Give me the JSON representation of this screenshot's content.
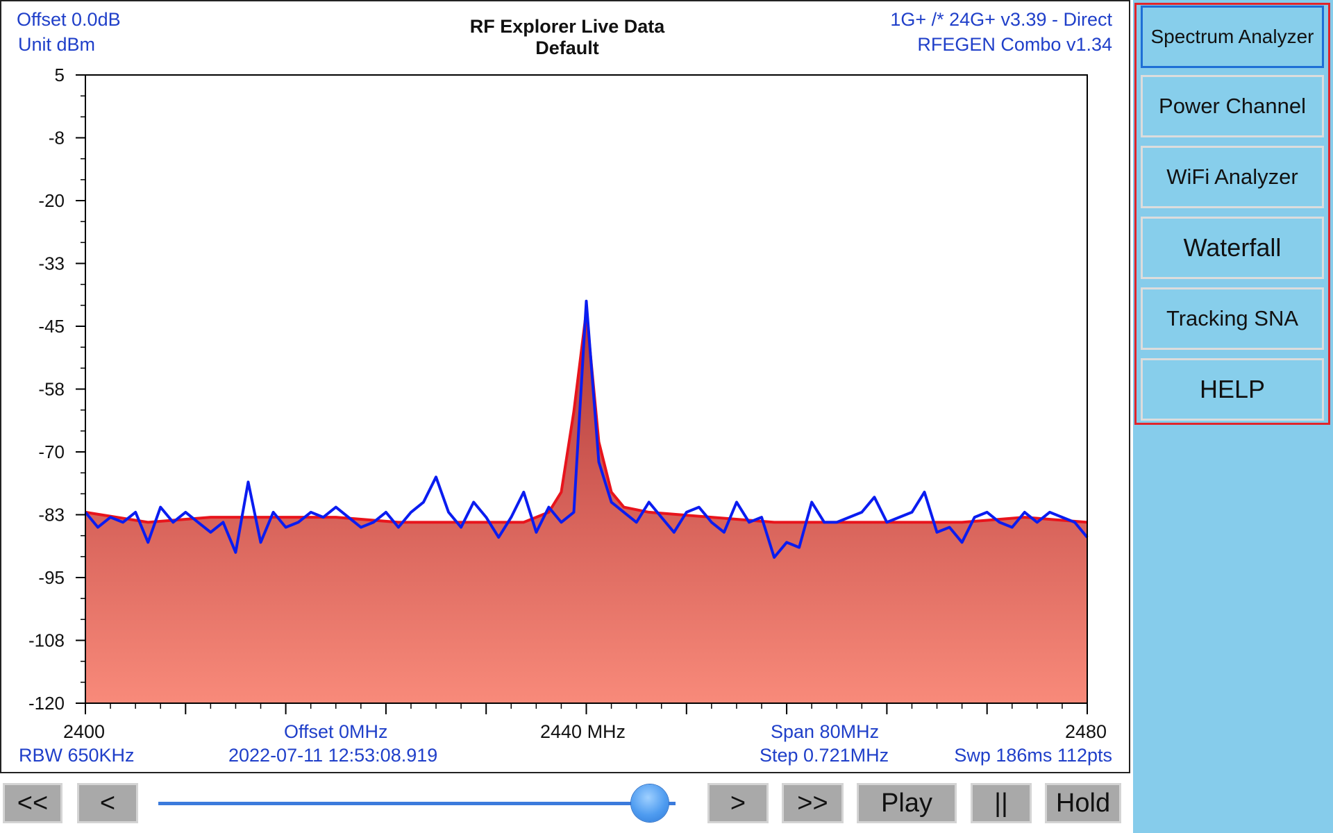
{
  "header": {
    "offset_db": "Offset 0.0dB",
    "unit": "Unit dBm",
    "title_line1": "RF Explorer Live Data",
    "title_line2": "Default",
    "firmware": "1G+ /* 24G+ v3.39 - Direct",
    "model": "RFEGEN Combo  v1.34"
  },
  "footer": {
    "start_freq": "2400",
    "offset_mhz": "Offset 0MHz",
    "center_freq": "2440 MHz",
    "span": "Span 80MHz",
    "end_freq": "2480",
    "rbw": "RBW 650KHz",
    "timestamp": "2022-07-11 12:53:08.919",
    "step": "Step 0.721MHz",
    "sweep": "Swp 186ms  112pts"
  },
  "modes": [
    {
      "label": "Spectrum Analyzer",
      "active": true
    },
    {
      "label": "Power Channel",
      "active": false
    },
    {
      "label": "WiFi Analyzer",
      "active": false
    },
    {
      "label": "Waterfall",
      "active": false
    },
    {
      "label": "Tracking SNA",
      "active": false
    },
    {
      "label": "HELP",
      "active": false
    }
  ],
  "controls": {
    "first": "<<",
    "prev": "<",
    "next": ">",
    "last": ">>",
    "play": "Play",
    "pause": "||",
    "hold": "Hold",
    "slider_value": 0.95
  },
  "colors": {
    "trace": "#0a1cf0",
    "max_hold": "#e8141c",
    "label": "#1f3fc9",
    "accent_border": "#e0252b",
    "panel_bg": "#86cceb"
  },
  "chart_data": {
    "type": "line",
    "ylim": [
      -120,
      5
    ],
    "y_ticks": [
      "5",
      "-8",
      "-20",
      "-33",
      "-45",
      "-58",
      "-70",
      "-83",
      "-95",
      "-108",
      "-120"
    ],
    "x_range": [
      2400,
      2480
    ],
    "series": [
      {
        "name": "",
        "kind": "realtime",
        "x": [
          2400,
          2401,
          2402,
          2403,
          2404,
          2405,
          2406,
          2407,
          2408,
          2409,
          2410,
          2411,
          2412,
          2413,
          2414,
          2415,
          2416,
          2417,
          2418,
          2419,
          2420,
          2421,
          2422,
          2423,
          2424,
          2425,
          2426,
          2427,
          2428,
          2429,
          2430,
          2431,
          2432,
          2433,
          2434,
          2435,
          2436,
          2437,
          2438,
          2439,
          2440,
          2441,
          2442,
          2443,
          2444,
          2445,
          2446,
          2447,
          2448,
          2449,
          2450,
          2451,
          2452,
          2453,
          2454,
          2455,
          2456,
          2457,
          2458,
          2459,
          2460,
          2461,
          2462,
          2463,
          2464,
          2465,
          2466,
          2467,
          2468,
          2469,
          2470,
          2471,
          2472,
          2473,
          2474,
          2475,
          2476,
          2477,
          2478,
          2479,
          2480
        ],
        "y": [
          -82,
          -85,
          -83,
          -84,
          -82,
          -88,
          -81,
          -84,
          -82,
          -84,
          -86,
          -84,
          -90,
          -76,
          -88,
          -82,
          -85,
          -84,
          -82,
          -83,
          -81,
          -83,
          -85,
          -84,
          -82,
          -85,
          -82,
          -80,
          -75,
          -82,
          -85,
          -80,
          -83,
          -87,
          -83,
          -78,
          -86,
          -81,
          -84,
          -82,
          -40,
          -72,
          -80,
          -82,
          -84,
          -80,
          -83,
          -86,
          -82,
          -81,
          -84,
          -86,
          -80,
          -84,
          -83,
          -91,
          -88,
          -89,
          -80,
          -84,
          -84,
          -83,
          -82,
          -79,
          -84,
          -83,
          -82,
          -78,
          -86,
          -85,
          -88,
          -83,
          -82,
          -84,
          -85,
          -82,
          -84,
          -82,
          -83,
          -84,
          -87
        ]
      },
      {
        "name": "",
        "kind": "max-hold",
        "x": [
          2400,
          2405,
          2410,
          2415,
          2420,
          2425,
          2430,
          2435,
          2437,
          2438,
          2439,
          2440,
          2441,
          2442,
          2443,
          2445,
          2450,
          2455,
          2460,
          2465,
          2470,
          2475,
          2480
        ],
        "y": [
          -82,
          -84,
          -83,
          -83,
          -83,
          -84,
          -84,
          -84,
          -82,
          -78,
          -62,
          -42,
          -68,
          -78,
          -81,
          -82,
          -83,
          -84,
          -84,
          -84,
          -84,
          -83,
          -84
        ]
      }
    ]
  }
}
